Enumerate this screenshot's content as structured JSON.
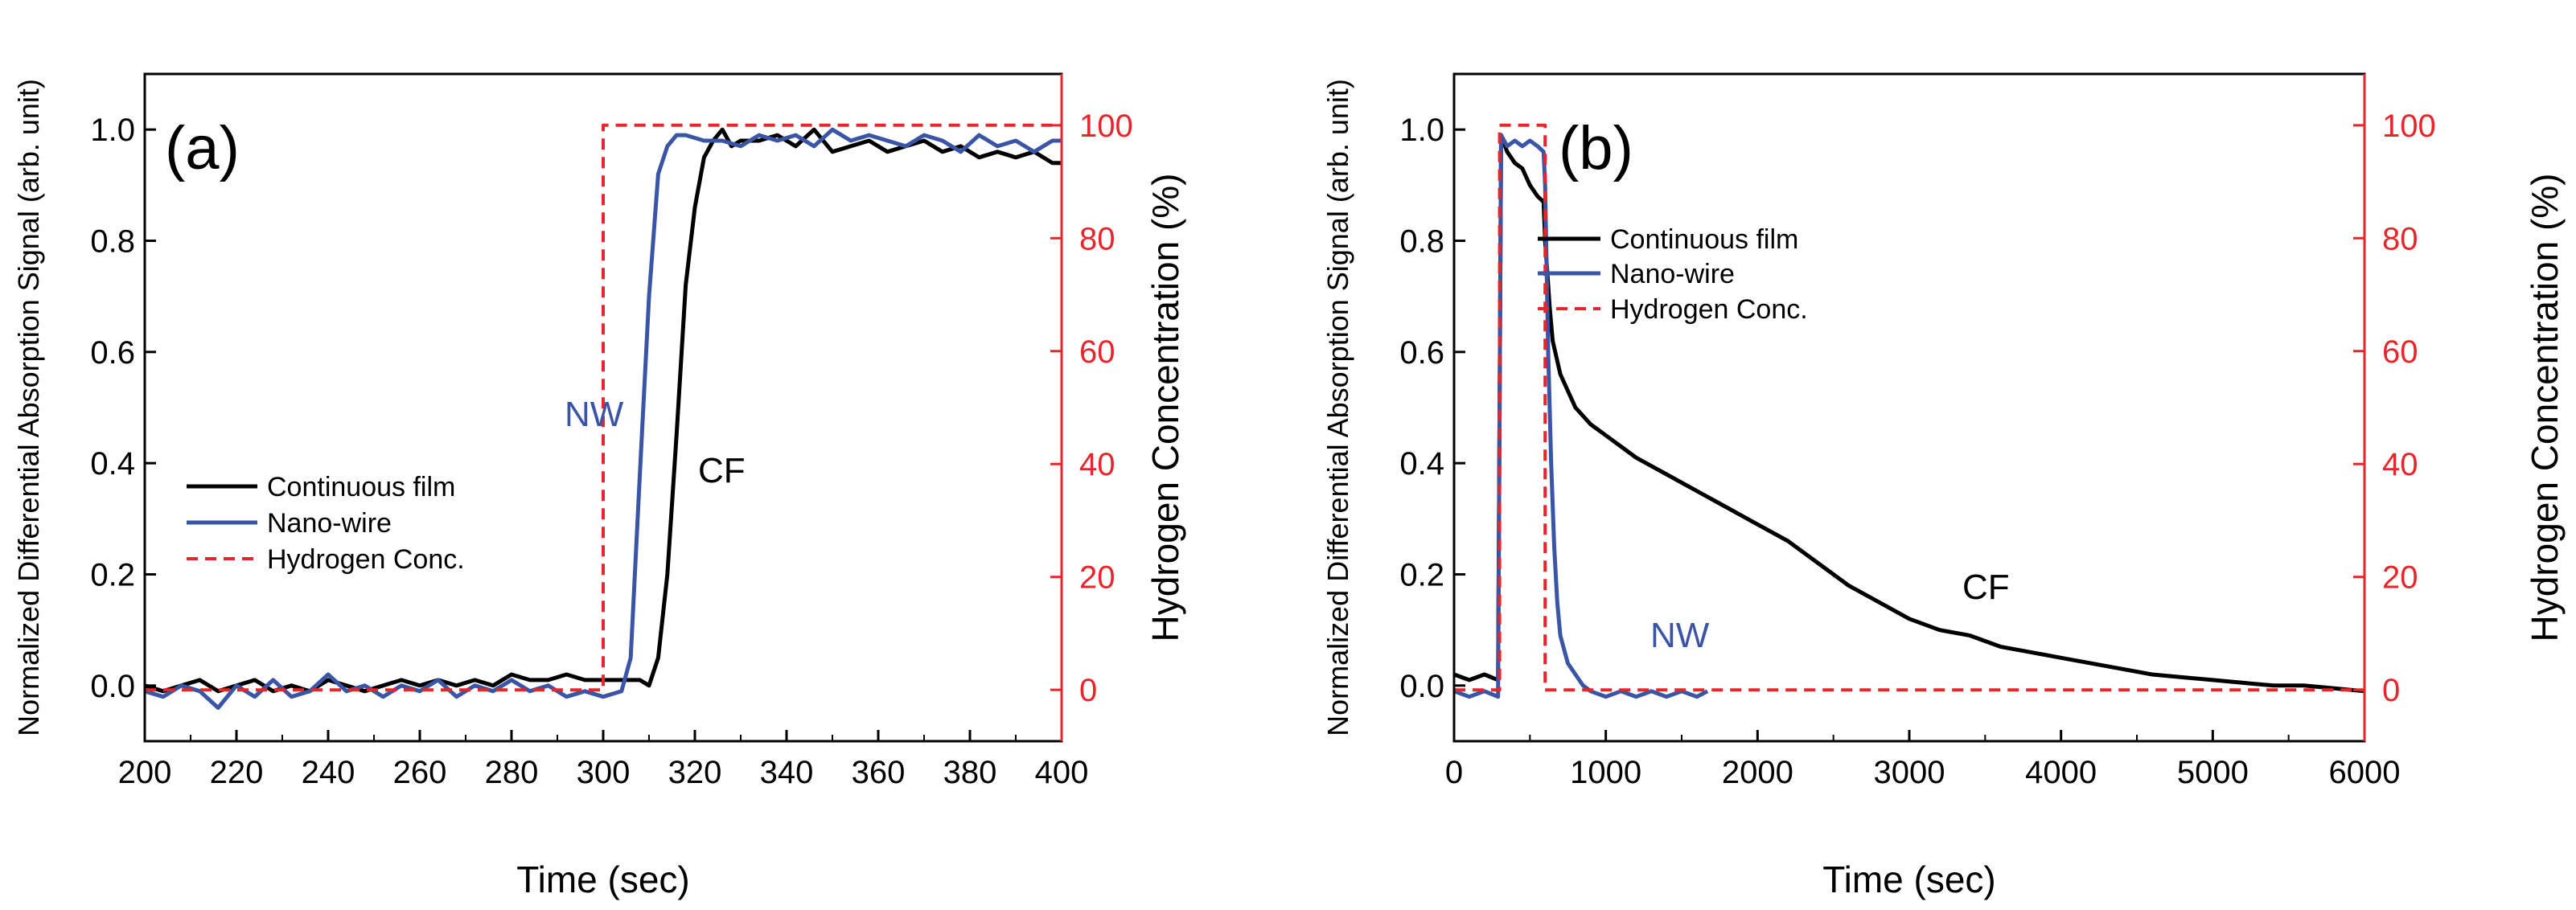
{
  "colors": {
    "cf": "#000000",
    "nw": "#3b55a6",
    "h2": "#e8252b",
    "axis": "#000000"
  },
  "chart_data": [
    {
      "type": "line",
      "panel_label": "(a)",
      "xlabel": "Time (sec)",
      "ylabel": "Normalized Differential Absorption Signal (arb. unit)",
      "y2label": "Hydrogen Concentration (%)",
      "xlim": [
        200,
        400
      ],
      "ylim": [
        -0.1,
        1.1
      ],
      "y2lim": [
        -9.0909,
        109.0909
      ],
      "xticks": [
        "200",
        "220",
        "240",
        "260",
        "280",
        "300",
        "320",
        "340",
        "360",
        "380",
        "400"
      ],
      "yticks": [
        "0.0",
        "0.2",
        "0.4",
        "0.6",
        "0.8",
        "1.0"
      ],
      "y2ticks": [
        "0",
        "20",
        "40",
        "60",
        "80",
        "100"
      ],
      "legend": [
        "Continuous film",
        "Nano-wire",
        "Hydrogen Conc."
      ],
      "legend_position": "center-left",
      "annotations": [
        {
          "text": "NW",
          "series": "nw",
          "x": 306,
          "y": 0.43
        },
        {
          "text": "CF",
          "series": "cf",
          "x": 323,
          "y": 0.35
        }
      ],
      "series": [
        {
          "name": "Continuous film",
          "key": "cf",
          "axis": "left",
          "x": [
            200,
            204,
            208,
            212,
            216,
            220,
            224,
            228,
            232,
            236,
            240,
            244,
            248,
            252,
            256,
            260,
            264,
            268,
            272,
            276,
            280,
            284,
            288,
            292,
            296,
            300,
            304,
            308,
            310,
            312,
            314,
            316,
            318,
            320,
            322,
            324,
            326,
            328,
            330,
            334,
            338,
            342,
            346,
            350,
            354,
            358,
            362,
            366,
            370,
            374,
            378,
            382,
            386,
            390,
            394,
            398,
            400
          ],
          "y": [
            0.0,
            -0.01,
            0.0,
            0.01,
            -0.01,
            0.0,
            0.01,
            -0.01,
            0.0,
            -0.01,
            0.01,
            0.0,
            -0.01,
            0.0,
            0.01,
            0.0,
            0.01,
            0.0,
            0.01,
            0.0,
            0.02,
            0.01,
            0.01,
            0.02,
            0.01,
            0.01,
            0.01,
            0.01,
            0.0,
            0.05,
            0.2,
            0.45,
            0.72,
            0.86,
            0.95,
            0.98,
            1.0,
            0.97,
            0.98,
            0.98,
            0.99,
            0.97,
            1.0,
            0.96,
            0.97,
            0.98,
            0.96,
            0.97,
            0.98,
            0.96,
            0.97,
            0.95,
            0.96,
            0.95,
            0.96,
            0.94,
            0.94
          ]
        },
        {
          "name": "Nano-wire",
          "key": "nw",
          "axis": "left",
          "x": [
            200,
            204,
            208,
            212,
            216,
            220,
            224,
            228,
            232,
            236,
            240,
            244,
            248,
            252,
            256,
            260,
            264,
            268,
            272,
            276,
            280,
            284,
            288,
            292,
            296,
            300,
            304,
            306,
            308,
            310,
            312,
            314,
            316,
            318,
            322,
            326,
            330,
            334,
            338,
            342,
            346,
            350,
            354,
            358,
            362,
            366,
            370,
            374,
            378,
            382,
            386,
            390,
            394,
            398,
            400
          ],
          "y": [
            -0.01,
            -0.02,
            0.0,
            -0.01,
            -0.04,
            0.0,
            -0.02,
            0.01,
            -0.02,
            -0.01,
            0.02,
            -0.01,
            0.0,
            -0.02,
            0.0,
            -0.01,
            0.01,
            -0.02,
            0.0,
            -0.01,
            0.01,
            -0.01,
            0.0,
            -0.02,
            -0.01,
            -0.02,
            -0.01,
            0.05,
            0.38,
            0.7,
            0.92,
            0.97,
            0.99,
            0.99,
            0.98,
            0.98,
            0.97,
            0.99,
            0.98,
            0.99,
            0.97,
            1.0,
            0.98,
            0.99,
            0.98,
            0.97,
            0.99,
            0.98,
            0.96,
            0.99,
            0.97,
            0.98,
            0.96,
            0.98,
            0.98
          ]
        },
        {
          "name": "Hydrogen Conc.",
          "key": "h2",
          "axis": "right",
          "dashed": true,
          "x": [
            200,
            300,
            300,
            400
          ],
          "y": [
            0,
            0,
            100,
            100
          ]
        }
      ]
    },
    {
      "type": "line",
      "panel_label": "(b)",
      "xlabel": "Time (sec)",
      "ylabel": "Normalized Differential Absorption Signal (arb. unit)",
      "y2label": "Hydrogen Concentration (%)",
      "xlim": [
        0,
        6000
      ],
      "ylim": [
        -0.1,
        1.1
      ],
      "y2lim": [
        -9.0909,
        109.0909
      ],
      "xticks": [
        "0",
        "1000",
        "2000",
        "3000",
        "4000",
        "5000",
        "6000"
      ],
      "yticks": [
        "0.0",
        "0.2",
        "0.4",
        "0.6",
        "0.8",
        "1.0"
      ],
      "y2ticks": [
        "0",
        "20",
        "40",
        "60",
        "80",
        "100"
      ],
      "legend": [
        "Continuous film",
        "Nano-wire",
        "Hydrogen Conc."
      ],
      "legend_position": "top-left",
      "annotations": [
        {
          "text": "NW",
          "series": "nw",
          "x": 950,
          "y": 0.07
        },
        {
          "text": "CF",
          "series": "cf",
          "x": 3050,
          "y": 0.16
        }
      ],
      "series": [
        {
          "name": "Continuous film",
          "key": "cf",
          "axis": "left",
          "x": [
            0,
            100,
            200,
            290,
            300,
            310,
            350,
            400,
            450,
            500,
            550,
            590,
            600,
            630,
            650,
            700,
            800,
            900,
            1000,
            1200,
            1400,
            1600,
            1800,
            2000,
            2200,
            2400,
            2600,
            2800,
            3000,
            3200,
            3400,
            3600,
            3800,
            4000,
            4200,
            4400,
            4600,
            4800,
            5000,
            5200,
            5400,
            5600,
            5800,
            6000
          ],
          "y": [
            0.02,
            0.01,
            0.02,
            0.01,
            0.5,
            0.99,
            0.96,
            0.94,
            0.93,
            0.9,
            0.88,
            0.87,
            0.8,
            0.68,
            0.62,
            0.56,
            0.5,
            0.47,
            0.45,
            0.41,
            0.38,
            0.35,
            0.32,
            0.29,
            0.26,
            0.22,
            0.18,
            0.15,
            0.12,
            0.1,
            0.09,
            0.07,
            0.06,
            0.05,
            0.04,
            0.03,
            0.02,
            0.015,
            0.01,
            0.005,
            0.0,
            0.0,
            -0.005,
            -0.01
          ]
        },
        {
          "name": "Nano-wire",
          "key": "nw",
          "axis": "left",
          "x": [
            0,
            100,
            200,
            290,
            300,
            310,
            350,
            400,
            450,
            500,
            550,
            590,
            600,
            620,
            640,
            660,
            680,
            700,
            750,
            800,
            850,
            900,
            1000,
            1100,
            1200,
            1300,
            1400,
            1500,
            1600,
            1670
          ],
          "y": [
            -0.01,
            -0.02,
            -0.01,
            -0.02,
            0.5,
            0.99,
            0.97,
            0.98,
            0.97,
            0.98,
            0.97,
            0.96,
            0.9,
            0.6,
            0.4,
            0.25,
            0.15,
            0.09,
            0.04,
            0.02,
            0.0,
            -0.01,
            -0.02,
            -0.01,
            -0.02,
            -0.01,
            -0.02,
            -0.01,
            -0.02,
            -0.01
          ]
        },
        {
          "name": "Hydrogen Conc.",
          "key": "h2",
          "axis": "right",
          "dashed": true,
          "x": [
            0,
            300,
            300,
            600,
            600,
            6000
          ],
          "y": [
            0,
            0,
            100,
            100,
            0,
            0
          ]
        }
      ]
    }
  ]
}
